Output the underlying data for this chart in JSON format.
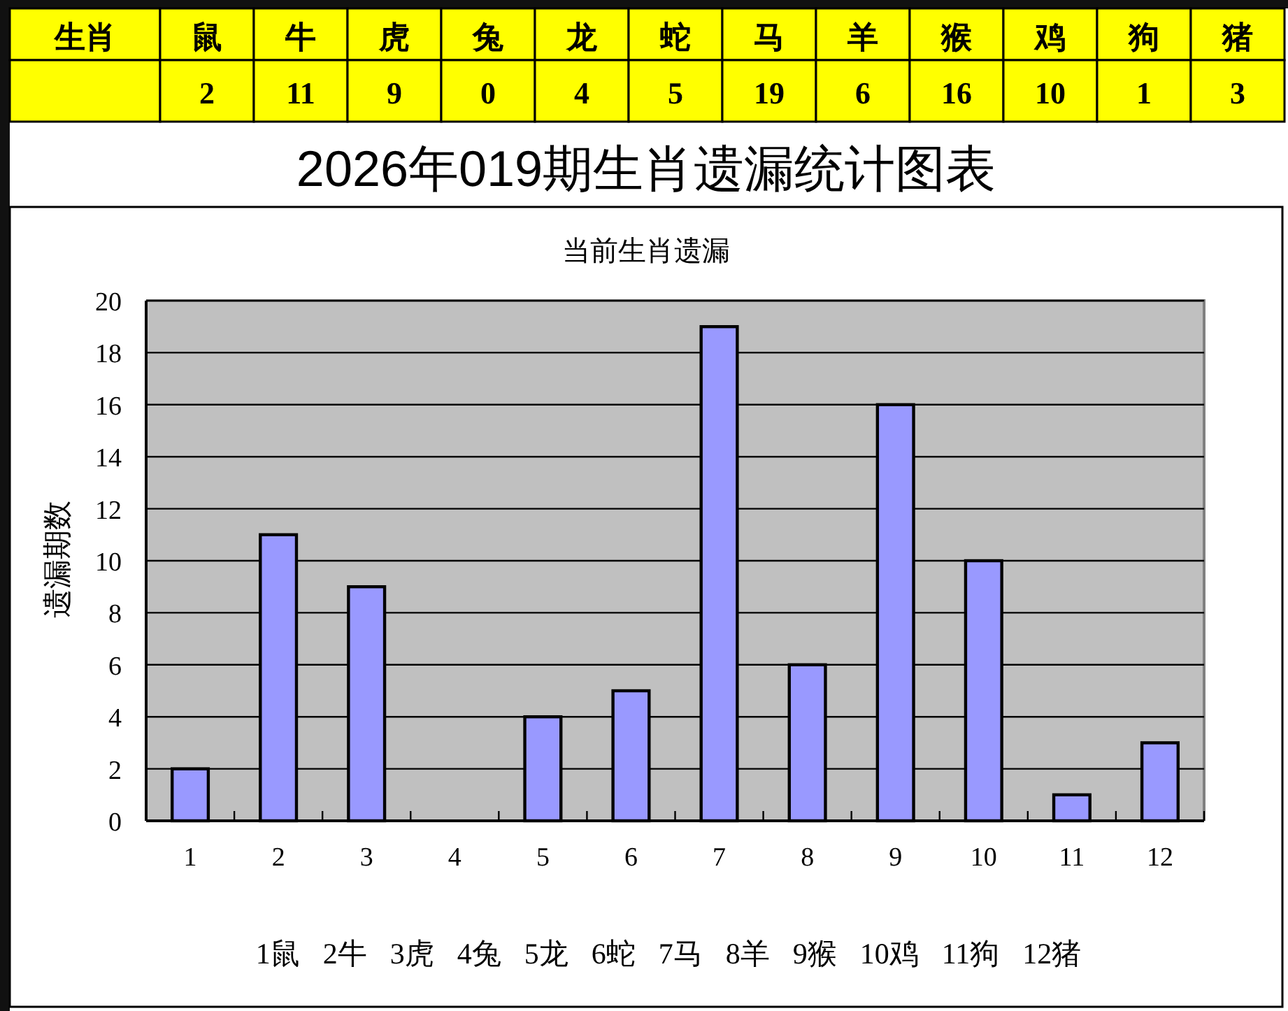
{
  "chart_data": [
    {
      "type": "other",
      "categories": [
        "鼠",
        "牛",
        "虎",
        "兔",
        "龙",
        "蛇",
        "马",
        "羊",
        "猴",
        "鸡",
        "狗",
        "猪"
      ],
      "values": [
        2,
        11,
        9,
        0,
        4,
        5,
        19,
        6,
        16,
        10,
        1,
        3
      ],
      "data_labels": true,
      "annotations": [
        "生肖"
      ]
    },
    {
      "type": "bar",
      "title": "2026年019期生肖遗漏统计图表",
      "subtitle": "当前生肖遗漏",
      "ylabel": "遗漏期数",
      "categories": [
        "1",
        "2",
        "3",
        "4",
        "5",
        "6",
        "7",
        "8",
        "9",
        "10",
        "11",
        "12"
      ],
      "values": [
        2,
        11,
        9,
        0,
        4,
        5,
        19,
        6,
        16,
        10,
        1,
        3
      ],
      "color": "#9999ff",
      "ylim": [
        0,
        20
      ],
      "yticks": [
        0,
        2,
        4,
        6,
        8,
        10,
        12,
        14,
        16,
        18,
        20
      ],
      "grid": "y",
      "annotations": [
        "1鼠  2牛  3虎  4兔  5龙  6蛇  7马  8羊  9猴  10鸡  11狗  12猪"
      ]
    }
  ]
}
